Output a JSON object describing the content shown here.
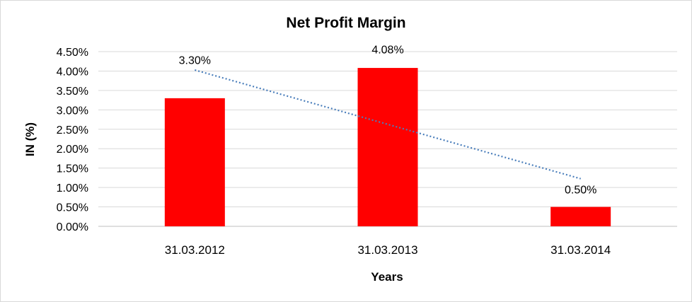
{
  "chart_data": {
    "type": "bar",
    "title": "Net Profit Margin",
    "xlabel": "Years",
    "ylabel": "IN (%)",
    "categories": [
      "31.03.2012",
      "31.03.2013",
      "31.03.2014"
    ],
    "values": [
      3.3,
      4.08,
      0.5
    ],
    "data_labels": [
      "3.30%",
      "4.08%",
      "0.50%"
    ],
    "ylim": [
      0,
      4.5
    ],
    "y_ticks": [
      0,
      0.5,
      1.0,
      1.5,
      2.0,
      2.5,
      3.0,
      3.5,
      4.0,
      4.5
    ],
    "y_tick_labels": [
      "0.00%",
      "0.50%",
      "1.00%",
      "1.50%",
      "2.00%",
      "2.50%",
      "3.00%",
      "3.50%",
      "4.00%",
      "4.50%"
    ],
    "grid": true,
    "legend": "none",
    "trendline": {
      "type": "linear",
      "style": "dotted"
    },
    "colors": {
      "bar": "#ff0000",
      "trendline": "#4a7ebb",
      "grid": "#d9d9d9"
    }
  }
}
